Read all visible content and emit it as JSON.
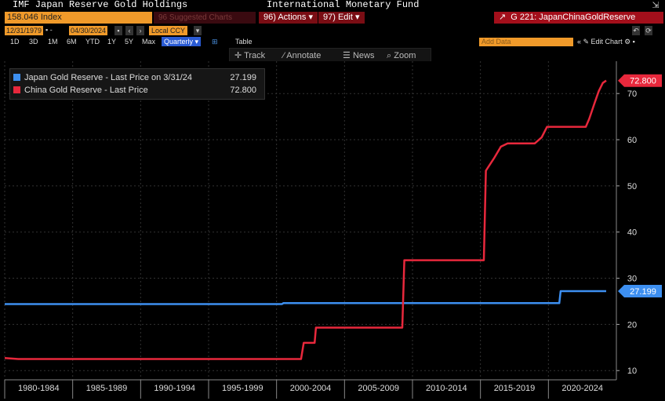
{
  "header": {
    "title_left": "IMF Japan Reserve Gold Holdings",
    "title_center": "International Monetary Fund",
    "corner_icon": "export-icon"
  },
  "toolbar": {
    "security": "158.046 Index",
    "suggested": "96 Suggested Charts",
    "actions": "96) Actions ▾",
    "edit": "97) Edit ▾",
    "chart_name": "G 221: JapanChinaGoldReserve",
    "date_start": "12/31/1979",
    "date_end": "04/30/2024",
    "currency": "Local CCY",
    "periods": [
      "1D",
      "3D",
      "1M",
      "6M",
      "YTD",
      "1Y",
      "5Y",
      "Max"
    ],
    "frequency": "Quarterly ▾",
    "table_label": "Table",
    "add_data": "Add Data",
    "edit_chart": "« ✎ Edit Chart ⚙ ▪"
  },
  "chart_tools": [
    {
      "icon": "crosshair-icon",
      "label": "Track"
    },
    {
      "icon": "pencil-icon",
      "label": "Annotate"
    },
    {
      "icon": "news-icon",
      "label": "News"
    },
    {
      "icon": "magnifier-icon",
      "label": "Zoom"
    }
  ],
  "legend": [
    {
      "label": "Japan Gold Reserve - Last Price on 3/31/24",
      "value": "27.199",
      "color": "#3d8ff0"
    },
    {
      "label": "China Gold Reserve - Last Price",
      "value": "72.800",
      "color": "#e8283c"
    }
  ],
  "chart_data": {
    "type": "line",
    "x_range": [
      1980,
      2025
    ],
    "ylim": [
      8,
      77
    ],
    "y_ticks": [
      10,
      20,
      30,
      40,
      50,
      60,
      70
    ],
    "x_tick_labels": [
      "1980-1984",
      "1985-1989",
      "1990-1994",
      "1995-1999",
      "2000-2004",
      "2005-2009",
      "2010-2014",
      "2015-2019",
      "2020-2024"
    ],
    "grid": true,
    "legend_position": "top-left",
    "series": [
      {
        "name": "Japan Gold Reserve",
        "color": "#3d8ff0",
        "last_value": "27.199",
        "points": [
          [
            1980,
            24.4
          ],
          [
            2000.4,
            24.4
          ],
          [
            2000.5,
            24.6
          ],
          [
            2020.8,
            24.6
          ],
          [
            2020.9,
            27.2
          ],
          [
            2024.25,
            27.2
          ]
        ]
      },
      {
        "name": "China Gold Reserve",
        "color": "#e8283c",
        "last_value": "72.800",
        "points": [
          [
            1980,
            12.7
          ],
          [
            1981,
            12.5
          ],
          [
            2001.8,
            12.5
          ],
          [
            2002,
            16.0
          ],
          [
            2002.8,
            16.0
          ],
          [
            2002.9,
            19.3
          ],
          [
            2009.25,
            19.3
          ],
          [
            2009.4,
            33.9
          ],
          [
            2015.25,
            33.9
          ],
          [
            2015.4,
            53.3
          ],
          [
            2016,
            56.0
          ],
          [
            2016.5,
            58.5
          ],
          [
            2017,
            59.2
          ],
          [
            2019.0,
            59.2
          ],
          [
            2019.5,
            60.5
          ],
          [
            2019.9,
            62.8
          ],
          [
            2022.75,
            62.8
          ],
          [
            2023.0,
            64.5
          ],
          [
            2023.4,
            68.0
          ],
          [
            2023.7,
            70.5
          ],
          [
            2024.0,
            72.3
          ],
          [
            2024.25,
            72.8
          ]
        ]
      }
    ]
  }
}
